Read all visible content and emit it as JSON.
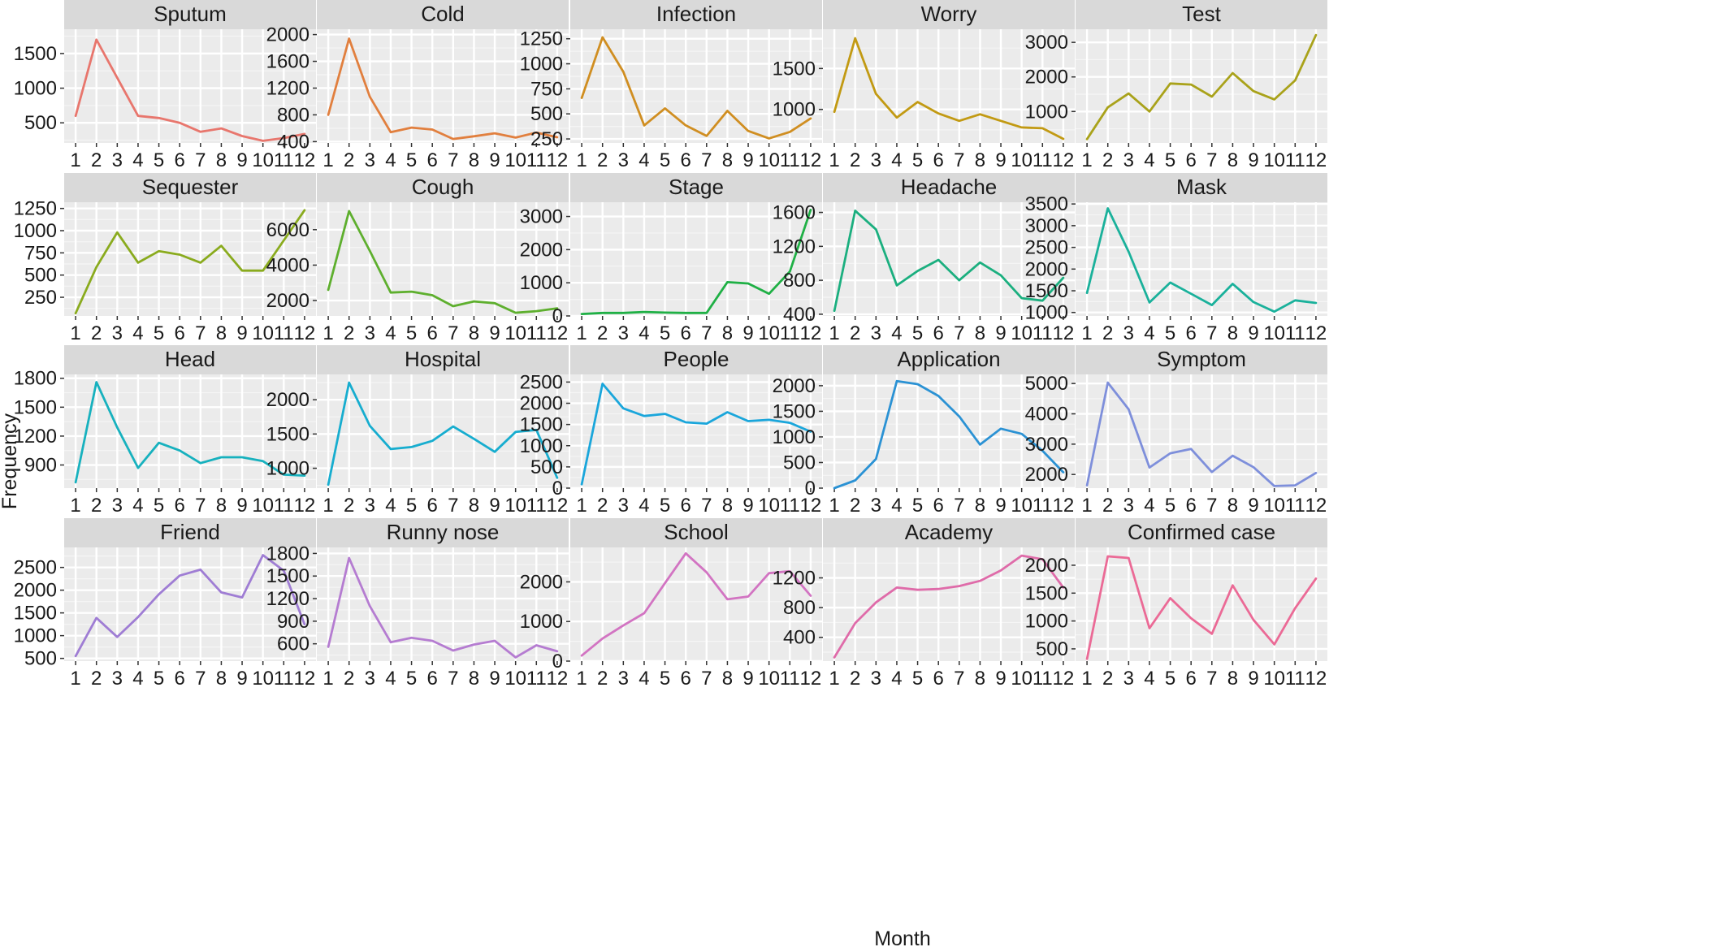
{
  "chart_data": {
    "type": "line",
    "x": [
      1,
      2,
      3,
      4,
      5,
      6,
      7,
      8,
      9,
      10,
      11,
      12
    ],
    "xlabel": "Month",
    "ylabel": "Frequency",
    "grid": true,
    "panels": [
      {
        "name": "Sputum",
        "color": "#E8766D",
        "values": [
          600,
          1700,
          1150,
          600,
          570,
          500,
          370,
          420,
          310,
          240,
          280,
          340
        ],
        "ylim": [
          210,
          1850
        ],
        "yticks": [
          500,
          1000,
          1500
        ]
      },
      {
        "name": "Cold",
        "color": "#E17F3E",
        "values": [
          800,
          1940,
          1070,
          540,
          610,
          580,
          440,
          480,
          525,
          460,
          535,
          465
        ],
        "ylim": [
          380,
          2080
        ],
        "yticks": [
          400,
          800,
          1200,
          1600,
          2000
        ]
      },
      {
        "name": "Infection",
        "color": "#D08E21",
        "values": [
          660,
          1265,
          920,
          385,
          555,
          385,
          280,
          530,
          330,
          255,
          320,
          455
        ],
        "ylim": [
          210,
          1345
        ],
        "yticks": [
          250,
          500,
          750,
          1000,
          1250
        ]
      },
      {
        "name": "Worry",
        "color": "#C29A13",
        "values": [
          970,
          1870,
          1190,
          900,
          1090,
          950,
          860,
          940,
          860,
          780,
          770,
          640
        ],
        "ylim": [
          590,
          1980
        ],
        "yticks": [
          1000,
          1500
        ]
      },
      {
        "name": "Test",
        "color": "#A9A21A",
        "values": [
          200,
          1120,
          1520,
          1000,
          1810,
          1780,
          1430,
          2110,
          1590,
          1350,
          1900,
          3210
        ],
        "ylim": [
          90,
          3380
        ],
        "yticks": [
          1000,
          2000,
          3000
        ]
      },
      {
        "name": "Sequester",
        "color": "#8AAB1E",
        "values": [
          70,
          590,
          980,
          640,
          770,
          730,
          640,
          830,
          550,
          550,
          890,
          1230
        ],
        "ylim": [
          40,
          1320
        ],
        "yticks": [
          250,
          500,
          750,
          1000,
          1250
        ]
      },
      {
        "name": "Cough",
        "color": "#5EAF2E",
        "values": [
          2600,
          7050,
          4800,
          2450,
          2500,
          2300,
          1680,
          1950,
          1850,
          1310,
          1400,
          1560
        ],
        "ylim": [
          1130,
          7550
        ],
        "yticks": [
          2000,
          4000,
          6000
        ]
      },
      {
        "name": "Stage",
        "color": "#1FB045",
        "values": [
          60,
          90,
          90,
          120,
          100,
          90,
          90,
          1020,
          980,
          670,
          1340,
          3200
        ],
        "ylim": [
          0,
          3430
        ],
        "yticks": [
          0,
          1000,
          2000,
          3000
        ]
      },
      {
        "name": "Headache",
        "color": "#1BAF7F",
        "values": [
          440,
          1620,
          1400,
          740,
          910,
          1040,
          800,
          1010,
          860,
          590,
          560,
          830
        ],
        "ylim": [
          380,
          1720
        ],
        "yticks": [
          400,
          800,
          1200,
          1600
        ]
      },
      {
        "name": "Mask",
        "color": "#1AB19B",
        "values": [
          1450,
          3400,
          2400,
          1230,
          1690,
          1430,
          1170,
          1660,
          1240,
          1020,
          1280,
          1220
        ],
        "ylim": [
          920,
          3540
        ],
        "yticks": [
          1000,
          1500,
          2000,
          2500,
          3000,
          3500
        ]
      },
      {
        "name": "Head",
        "color": "#17B1BE",
        "values": [
          720,
          1760,
          1290,
          870,
          1130,
          1050,
          920,
          980,
          980,
          940,
          800,
          790
        ],
        "ylim": [
          660,
          1840
        ],
        "yticks": [
          900,
          1200,
          1500,
          1800
        ]
      },
      {
        "name": "Hospital",
        "color": "#17ADCF",
        "values": [
          760,
          2250,
          1620,
          1280,
          1310,
          1400,
          1610,
          1430,
          1240,
          1530,
          1560,
          860
        ],
        "ylim": [
          710,
          2370
        ],
        "yticks": [
          1000,
          1500,
          2000
        ]
      },
      {
        "name": "People",
        "color": "#1AA6DB",
        "values": [
          90,
          2460,
          1880,
          1700,
          1750,
          1550,
          1520,
          1790,
          1580,
          1610,
          1540,
          1330
        ],
        "ylim": [
          0,
          2680
        ],
        "yticks": [
          0,
          500,
          1000,
          1500,
          2000,
          2500
        ]
      },
      {
        "name": "Application",
        "color": "#2B92D4",
        "values": [
          0,
          150,
          570,
          2090,
          2030,
          1800,
          1400,
          850,
          1160,
          1060,
          730,
          310
        ],
        "ylim": [
          0,
          2220
        ],
        "yticks": [
          0,
          500,
          1000,
          1500,
          2000
        ]
      },
      {
        "name": "Symptom",
        "color": "#7E8FDB",
        "values": [
          1640,
          5030,
          4150,
          2230,
          2700,
          2840,
          2080,
          2620,
          2240,
          1620,
          1640,
          2050
        ],
        "ylim": [
          1550,
          5300
        ],
        "yticks": [
          2000,
          3000,
          4000,
          5000
        ]
      },
      {
        "name": "Friend",
        "color": "#9F7DD4",
        "values": [
          550,
          1390,
          970,
          1410,
          1910,
          2320,
          2450,
          1950,
          1840,
          2770,
          2430,
          1250
        ],
        "ylim": [
          440,
          2940
        ],
        "yticks": [
          500,
          1000,
          1500,
          2000,
          2500
        ]
      },
      {
        "name": "Runny nose",
        "color": "#B57CD1",
        "values": [
          560,
          1740,
          1100,
          620,
          680,
          640,
          510,
          590,
          640,
          420,
          580,
          500
        ],
        "ylim": [
          370,
          1880
        ],
        "yticks": [
          600,
          900,
          1200,
          1500,
          1800
        ]
      },
      {
        "name": "School",
        "color": "#D274C2",
        "values": [
          140,
          570,
          900,
          1210,
          1970,
          2720,
          2240,
          1560,
          1630,
          2220,
          2270,
          1650
        ],
        "ylim": [
          0,
          2870
        ],
        "yticks": [
          0,
          1000,
          2000
        ]
      },
      {
        "name": "Academy",
        "color": "#DF6BA9",
        "values": [
          130,
          590,
          870,
          1070,
          1040,
          1050,
          1090,
          1160,
          1300,
          1500,
          1450,
          1070
        ],
        "ylim": [
          80,
          1610
        ],
        "yticks": [
          400,
          800,
          1200
        ]
      },
      {
        "name": "Confirmed case",
        "color": "#EB6A96",
        "values": [
          320,
          2160,
          2130,
          870,
          1410,
          1050,
          770,
          1640,
          1020,
          580,
          1230,
          1760
        ],
        "ylim": [
          280,
          2320
        ],
        "yticks": [
          500,
          1000,
          1500,
          2000
        ]
      }
    ]
  }
}
